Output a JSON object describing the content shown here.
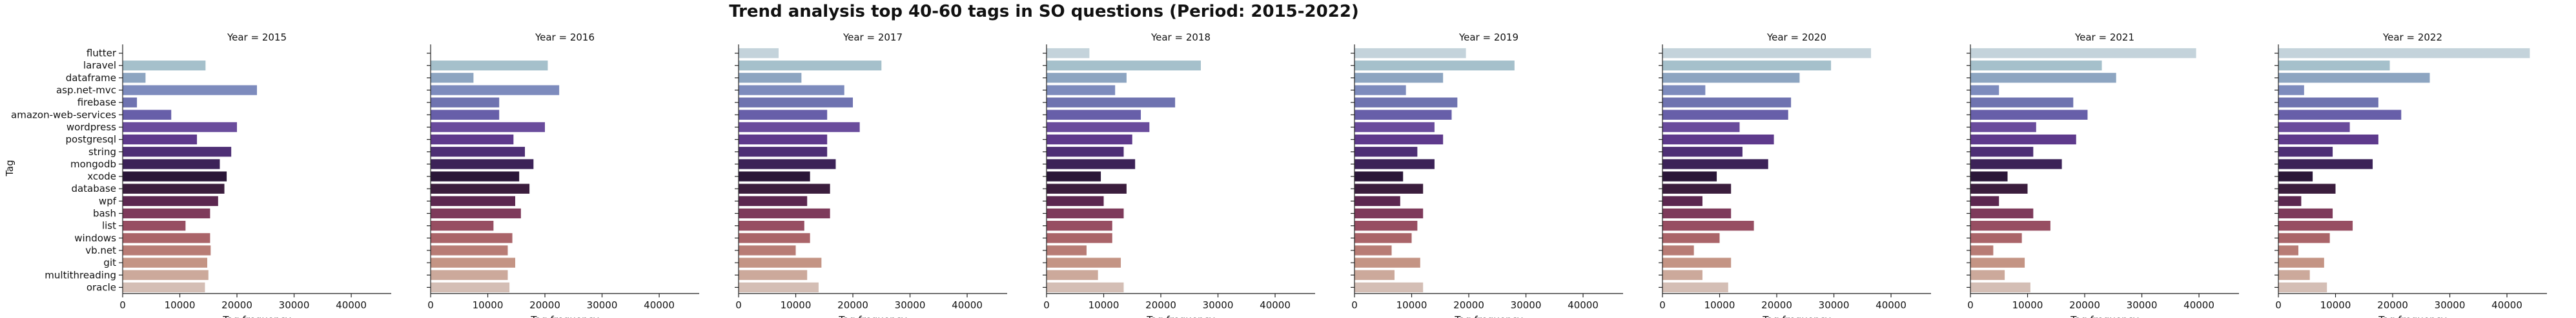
{
  "chart_data": {
    "type": "bar",
    "orientation": "horizontal",
    "title": "Trend analysis top 40-60 tags in SO questions (Period: 2015-2022)",
    "ylabel": "Tag",
    "xlabel": "Tag frequency",
    "xlim": [
      0,
      47000
    ],
    "xticks": [
      0,
      10000,
      20000,
      30000,
      40000
    ],
    "grid": false,
    "categories": [
      "flutter",
      "laravel",
      "dataframe",
      "asp.net-mvc",
      "firebase",
      "amazon-web-services",
      "wordpress",
      "postgresql",
      "string",
      "mongodb",
      "xcode",
      "database",
      "wpf",
      "bash",
      "list",
      "windows",
      "vb.net",
      "git",
      "multithreading",
      "oracle"
    ],
    "colors": [
      "#c4d3db",
      "#a5c0cb",
      "#8da5c1",
      "#7d8bbd",
      "#6f73b0",
      "#675fa9",
      "#6a4c9c",
      "#5e3a8c",
      "#4e2f75",
      "#3c2258",
      "#2a1638",
      "#3b1d3d",
      "#5c2750",
      "#7e3a5b",
      "#974e62",
      "#aa6469",
      "#b87c75",
      "#c49484",
      "#cca99b",
      "#d4beb5"
    ],
    "panels": [
      {
        "title": "Year = 2015",
        "values": [
          0,
          14500,
          4000,
          23500,
          2500,
          8500,
          20000,
          13000,
          19000,
          17000,
          18200,
          17800,
          16700,
          15300,
          11000,
          15300,
          15400,
          14800,
          15000,
          14400
        ]
      },
      {
        "title": "Year = 2016",
        "values": [
          0,
          20500,
          7500,
          22500,
          12000,
          12000,
          20000,
          14500,
          16500,
          18000,
          15500,
          17300,
          14800,
          15800,
          11000,
          14300,
          13500,
          14800,
          13500,
          13800
        ]
      },
      {
        "title": "Year = 2017",
        "values": [
          7000,
          25000,
          11000,
          18500,
          20000,
          15500,
          21200,
          15500,
          15500,
          17000,
          12500,
          16000,
          12000,
          16000,
          11500,
          12500,
          10000,
          14500,
          12000,
          14000
        ]
      },
      {
        "title": "Year = 2018",
        "values": [
          7500,
          27000,
          14000,
          12000,
          22500,
          16500,
          18000,
          15000,
          13500,
          15500,
          9500,
          14000,
          10000,
          13500,
          11500,
          11500,
          7000,
          13000,
          9000,
          13500
        ]
      },
      {
        "title": "Year = 2019",
        "values": [
          19500,
          28000,
          15500,
          9000,
          18000,
          17000,
          14000,
          15500,
          11000,
          14000,
          8500,
          12000,
          8000,
          12000,
          11000,
          10000,
          6500,
          11500,
          7000,
          12000
        ]
      },
      {
        "title": "Year = 2020",
        "values": [
          36500,
          29500,
          24000,
          7500,
          22500,
          22000,
          13500,
          19500,
          14000,
          18500,
          9500,
          12000,
          7000,
          12000,
          16000,
          10000,
          5500,
          12000,
          7000,
          11500
        ]
      },
      {
        "title": "Year = 2021",
        "values": [
          39500,
          23000,
          25500,
          5000,
          18000,
          20500,
          11500,
          18500,
          11000,
          16000,
          6500,
          10000,
          5000,
          11000,
          14000,
          9000,
          4000,
          9500,
          6000,
          10500
        ]
      },
      {
        "title": "Year = 2022",
        "values": [
          44000,
          19500,
          26500,
          4500,
          17500,
          21500,
          12500,
          17500,
          9500,
          16500,
          6000,
          10000,
          4000,
          9500,
          13000,
          9000,
          3500,
          8000,
          5500,
          8500
        ]
      }
    ]
  }
}
